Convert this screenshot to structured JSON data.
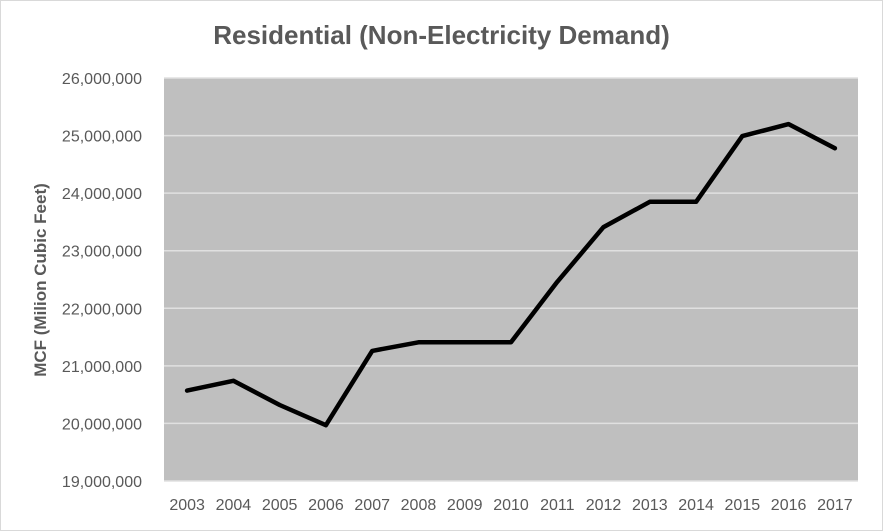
{
  "chart_data": {
    "type": "line",
    "title": "Residential (Non-Electricity Demand)",
    "xlabel": "",
    "ylabel": "MCF (Milion Cubic Feet)",
    "ylim": [
      19000000,
      26000000
    ],
    "y_ticks": [
      19000000,
      20000000,
      21000000,
      22000000,
      23000000,
      24000000,
      25000000,
      26000000
    ],
    "y_tick_labels": [
      "19,000,000",
      "20,000,000",
      "21,000,000",
      "22,000,000",
      "23,000,000",
      "24,000,000",
      "25,000,000",
      "26,000,000"
    ],
    "categories": [
      "2003",
      "2004",
      "2005",
      "2006",
      "2007",
      "2008",
      "2009",
      "2010",
      "2011",
      "2012",
      "2013",
      "2014",
      "2015",
      "2016",
      "2017"
    ],
    "series": [
      {
        "name": "Residential",
        "values": [
          20570000,
          20740000,
          20320000,
          19970000,
          21260000,
          21410000,
          21410000,
          21410000,
          22460000,
          23410000,
          23850000,
          23850000,
          24990000,
          25200000,
          24780000
        ]
      }
    ],
    "grid": true,
    "legend": "none",
    "colors": {
      "line": "#000000",
      "plot_bg": "#bfbfbf",
      "grid": "#e0e0e0",
      "text": "#595959"
    }
  }
}
